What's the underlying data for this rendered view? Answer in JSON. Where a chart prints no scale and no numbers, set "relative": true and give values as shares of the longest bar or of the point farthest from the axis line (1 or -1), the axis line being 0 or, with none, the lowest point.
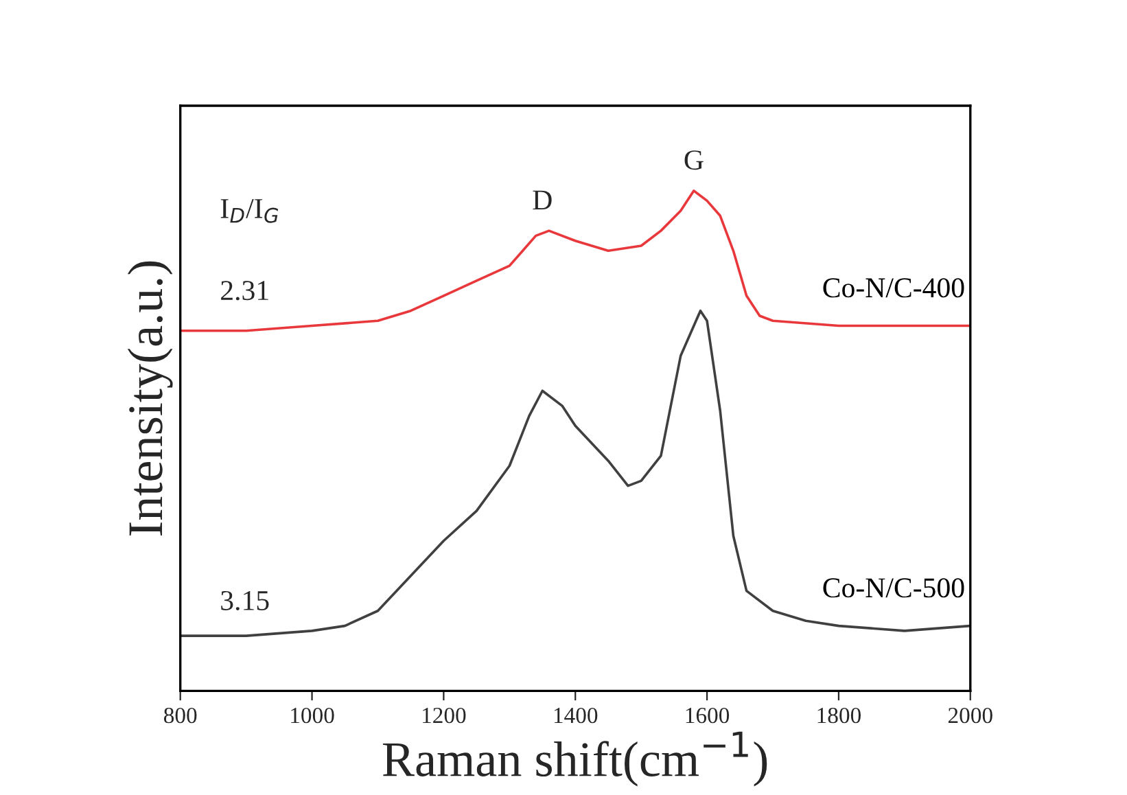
{
  "chart_data": {
    "type": "line",
    "relative": true,
    "xlabel": "Raman shift(cm$^{−1}$)",
    "ylabel": "Intensity(a.u.)",
    "xlim": [
      800,
      2000
    ],
    "xticks": [
      800,
      1000,
      1200,
      1400,
      1600,
      1800,
      2000
    ],
    "grid": false,
    "legend": false,
    "tick_labels": "x",
    "x": [
      800,
      900,
      1000,
      1050,
      1100,
      1150,
      1200,
      1250,
      1300,
      1330,
      1350,
      1380,
      1400,
      1450,
      1480,
      1500,
      1530,
      1560,
      1580,
      1590,
      1600,
      1620,
      1640,
      1660,
      1700,
      1750,
      1800,
      1900,
      2000
    ],
    "series": [
      {
        "name": "Co-N/C-400",
        "color": "#e8383b",
        "x": [
          800,
          900,
          1000,
          1100,
          1150,
          1200,
          1250,
          1300,
          1340,
          1360,
          1400,
          1450,
          1500,
          1530,
          1560,
          1580,
          1600,
          1620,
          1640,
          1660,
          1680,
          1700,
          1800,
          1900,
          2000
        ],
        "values": [
          0.72,
          0.72,
          0.73,
          0.74,
          0.76,
          0.79,
          0.82,
          0.85,
          0.91,
          0.92,
          0.9,
          0.88,
          0.89,
          0.92,
          0.96,
          1.0,
          0.98,
          0.95,
          0.88,
          0.79,
          0.75,
          0.74,
          0.73,
          0.73,
          0.73
        ]
      },
      {
        "name": "Co-N/C-500",
        "color": "#404040",
        "values": [
          0.11,
          0.11,
          0.12,
          0.13,
          0.16,
          0.23,
          0.3,
          0.36,
          0.45,
          0.55,
          0.6,
          0.57,
          0.53,
          0.46,
          0.41,
          0.42,
          0.47,
          0.67,
          0.73,
          0.76,
          0.74,
          0.56,
          0.31,
          0.2,
          0.16,
          0.14,
          0.13,
          0.12,
          0.13
        ]
      }
    ],
    "annotations": [
      "I$_{D}$/I$_{G}$",
      "2.31",
      "3.15",
      {
        "text": "D",
        "x": 1350,
        "y": 0.92
      },
      {
        "text": "G",
        "x": 1580,
        "y": 1.0
      }
    ]
  }
}
